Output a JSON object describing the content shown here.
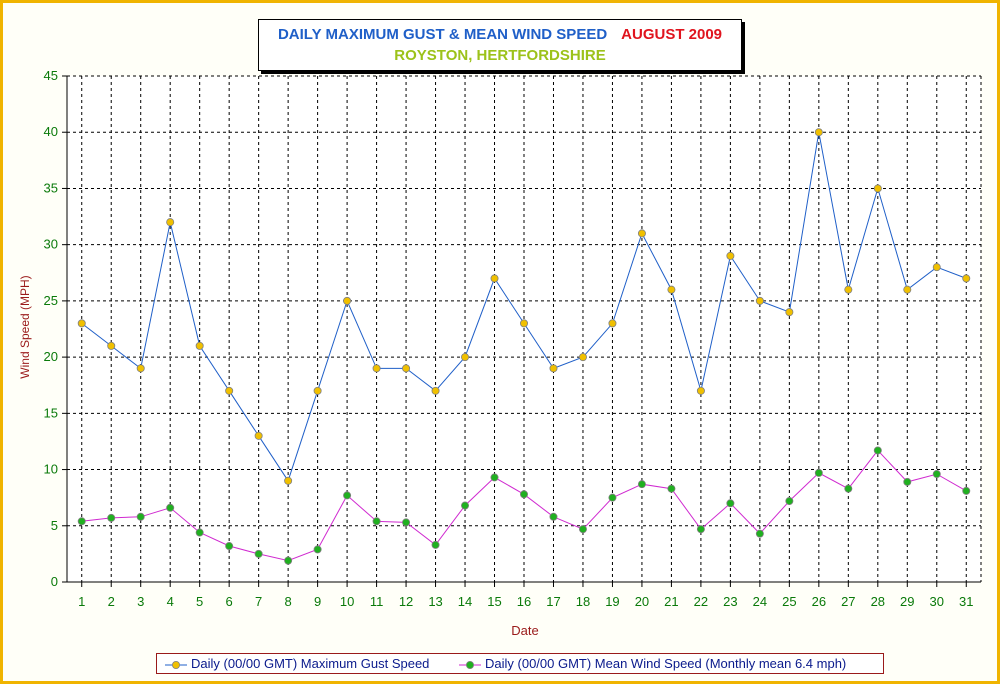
{
  "title": {
    "main": "DAILY MAXIMUM GUST & MEAN WIND SPEED",
    "date": "AUGUST 2009",
    "subtitle": "ROYSTON, HERTFORDSHIRE"
  },
  "colors": {
    "frame": "#f0b400",
    "gust_line": "#1f5fc8",
    "gust_marker": "#f0c000",
    "mean_line": "#d02ad0",
    "mean_marker": "#20b020",
    "tick_text": "#0a7a0a",
    "axis_label": "#9a1a1a"
  },
  "chart_data": {
    "type": "line",
    "xlabel": "Date",
    "ylabel": "Wind Speed (MPH)",
    "ylim": [
      0,
      45
    ],
    "yticks": [
      0,
      5,
      10,
      15,
      20,
      25,
      30,
      35,
      40,
      45
    ],
    "grid": true,
    "legend_position": "bottom",
    "x": [
      1,
      2,
      3,
      4,
      5,
      6,
      7,
      8,
      9,
      10,
      11,
      12,
      13,
      14,
      15,
      16,
      17,
      18,
      19,
      20,
      21,
      22,
      23,
      24,
      25,
      26,
      27,
      28,
      29,
      30,
      31
    ],
    "series": [
      {
        "name": "Daily (00/00 GMT) Maximum Gust Speed",
        "line_color": "#1f5fc8",
        "marker_color": "#f0c000",
        "values": [
          23,
          21,
          19,
          32,
          21,
          17,
          13,
          9,
          17,
          25,
          19,
          19,
          17,
          20,
          27,
          23,
          19,
          20,
          23,
          31,
          26,
          17,
          29,
          25,
          24,
          40,
          26,
          35,
          26,
          28,
          27
        ]
      },
      {
        "name": "Daily (00/00 GMT) Mean Wind Speed (Monthly mean 6.4 mph)",
        "line_color": "#d02ad0",
        "marker_color": "#20b020",
        "values": [
          5.4,
          5.7,
          5.8,
          6.6,
          4.4,
          3.2,
          2.5,
          1.9,
          2.9,
          7.7,
          5.4,
          5.3,
          3.3,
          6.8,
          9.3,
          7.8,
          5.8,
          4.7,
          7.5,
          8.7,
          8.3,
          4.7,
          7.0,
          4.3,
          7.2,
          9.7,
          8.3,
          11.7,
          8.9,
          9.6,
          8.1
        ]
      }
    ]
  }
}
